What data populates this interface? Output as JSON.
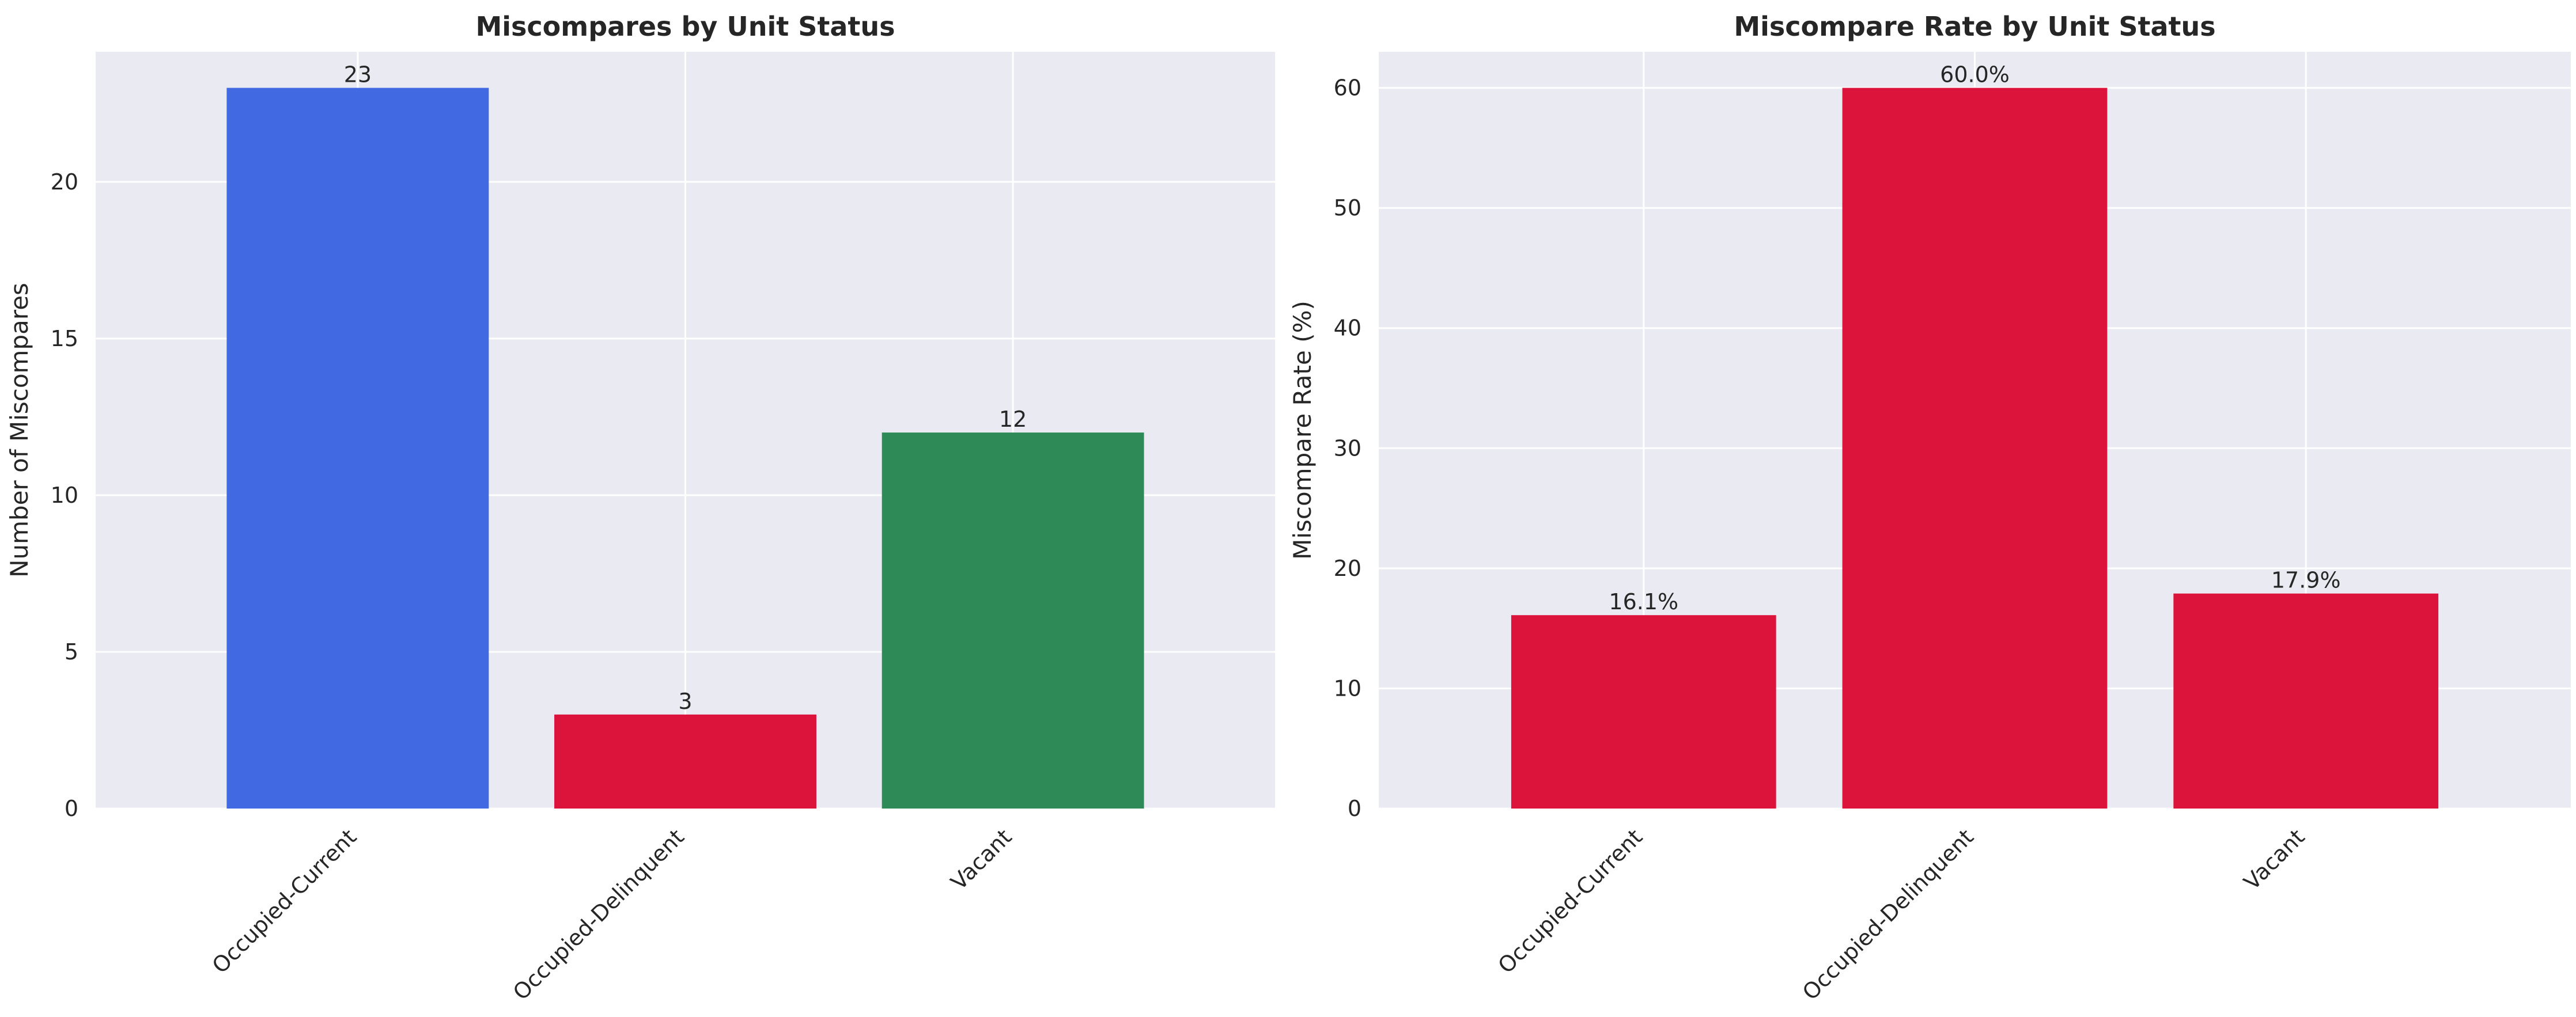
{
  "chart_data": [
    {
      "type": "bar",
      "title": "Miscompares by Unit Status",
      "xlabel": "",
      "ylabel": "Number of Miscompares",
      "categories": [
        "Occupied-Current",
        "Occupied-Delinquent",
        "Vacant"
      ],
      "values": [
        23,
        3,
        12
      ],
      "value_labels": [
        "23",
        "3",
        "12"
      ],
      "bar_colors": [
        "#4169e1",
        "#dc143c",
        "#2e8b57"
      ],
      "ylim": [
        0,
        24.15
      ],
      "yticks": [
        0,
        5,
        10,
        15,
        20
      ],
      "ytick_labels": [
        "0",
        "5",
        "10",
        "15",
        "20"
      ],
      "background": "#eaeaf2",
      "grid": true
    },
    {
      "type": "bar",
      "title": "Miscompare Rate by Unit Status",
      "xlabel": "",
      "ylabel": "Miscompare Rate (%)",
      "categories": [
        "Occupied-Current",
        "Occupied-Delinquent",
        "Vacant"
      ],
      "values": [
        16.1,
        60.0,
        17.9
      ],
      "value_labels": [
        "16.1%",
        "60.0%",
        "17.9%"
      ],
      "bar_colors": [
        "#dc143c",
        "#dc143c",
        "#dc143c"
      ],
      "ylim": [
        0,
        63
      ],
      "yticks": [
        0,
        10,
        20,
        30,
        40,
        50,
        60
      ],
      "ytick_labels": [
        "0",
        "10",
        "20",
        "30",
        "40",
        "50",
        "60"
      ],
      "background": "#eaeaf2",
      "grid": true
    }
  ]
}
